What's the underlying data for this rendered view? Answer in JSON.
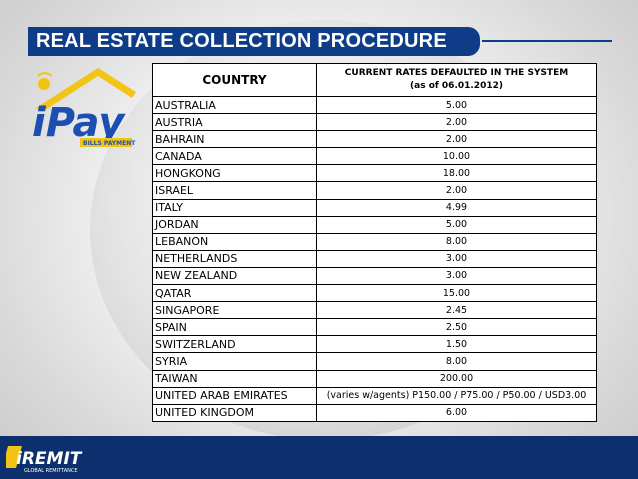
{
  "slide": {
    "title": "REAL ESTATE COLLECTION PROCEDURE"
  },
  "logos": {
    "ipay": {
      "text": "iPay",
      "subtext": "BILLS PAYMENT"
    },
    "iremit": {
      "text": "iREMIT",
      "subtext": "GLOBAL REMITTANCE"
    }
  },
  "table": {
    "headers": {
      "country": "COUNTRY",
      "rate_line1": "CURRENT RATES DEFAULTED IN THE SYSTEM",
      "rate_line2": "(as of 06.01.2012)"
    },
    "rows": [
      {
        "country": "AUSTRALIA",
        "rate": "5.00"
      },
      {
        "country": "AUSTRIA",
        "rate": "2.00"
      },
      {
        "country": "BAHRAIN",
        "rate": "2.00"
      },
      {
        "country": "CANADA",
        "rate": "10.00"
      },
      {
        "country": "HONGKONG",
        "rate": "18.00"
      },
      {
        "country": "ISRAEL",
        "rate": "2.00"
      },
      {
        "country": "ITALY",
        "rate": "4.99"
      },
      {
        "country": "JORDAN",
        "rate": "5.00"
      },
      {
        "country": "LEBANON",
        "rate": "8.00"
      },
      {
        "country": "NETHERLANDS",
        "rate": "3.00"
      },
      {
        "country": "NEW ZEALAND",
        "rate": "3.00"
      },
      {
        "country": "QATAR",
        "rate": "15.00"
      },
      {
        "country": "SINGAPORE",
        "rate": "2.45"
      },
      {
        "country": "SPAIN",
        "rate": "2.50"
      },
      {
        "country": "SWITZERLAND",
        "rate": "1.50"
      },
      {
        "country": "SYRIA",
        "rate": "8.00"
      },
      {
        "country": "TAIWAN",
        "rate": "200.00"
      },
      {
        "country": "UNITED ARAB EMIRATES",
        "rate": "(varies w/agents) P150.00 / P75.00 / P50.00 / USD3.00"
      },
      {
        "country": "UNITED KINGDOM",
        "rate": "6.00"
      }
    ]
  },
  "colors": {
    "title_bar": "#0f3c88",
    "footer_bar": "#0d2f6e",
    "ipay_blue": "#1d4fb0",
    "ipay_yellow": "#f2c414"
  }
}
